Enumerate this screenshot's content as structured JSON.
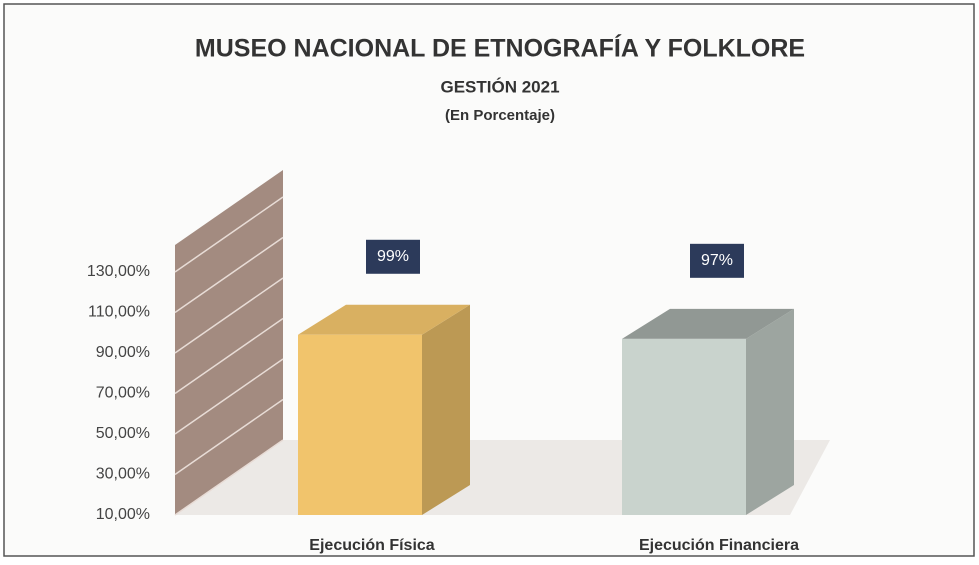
{
  "chart_data": {
    "type": "bar3d",
    "title": "MUSEO NACIONAL DE ETNOGRAFÍA Y FOLKLORE",
    "subtitle": "GESTIÓN 2021",
    "unit_note": "(En Porcentaje)",
    "categories": [
      "Ejecución Física",
      "Ejecución Financiera"
    ],
    "values": [
      99,
      97
    ],
    "value_labels": [
      "99%",
      "97%"
    ],
    "colors": [
      "#f1c46c",
      "#c9d3cd"
    ],
    "ylim": [
      10,
      130
    ],
    "yticks": [
      {
        "value": 10,
        "label": "10,00%"
      },
      {
        "value": 30,
        "label": "30,00%"
      },
      {
        "value": 50,
        "label": "50,00%"
      },
      {
        "value": 70,
        "label": "70,00%"
      },
      {
        "value": 90,
        "label": "90,00%"
      },
      {
        "value": 110,
        "label": "110,00%"
      },
      {
        "value": 130,
        "label": "130,00%"
      }
    ]
  }
}
